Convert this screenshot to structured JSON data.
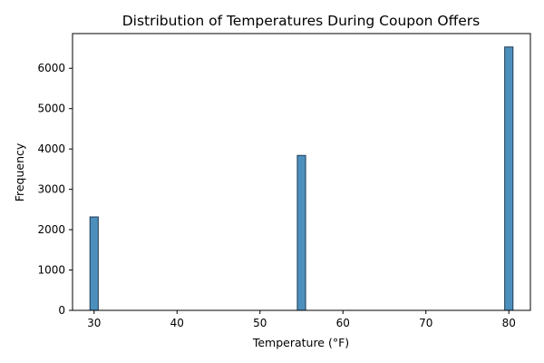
{
  "chart_data": {
    "type": "bar",
    "title": "Distribution of Temperatures During Coupon Offers",
    "xlabel": "Temperature (°F)",
    "ylabel": "Frequency",
    "xlim": [
      27.4,
      82.6
    ],
    "ylim": [
      0,
      6860
    ],
    "x_ticks": [
      30,
      40,
      50,
      60,
      70,
      80
    ],
    "y_ticks": [
      0,
      1000,
      2000,
      3000,
      4000,
      5000,
      6000
    ],
    "bin_width": 1,
    "bars": [
      {
        "x": 30,
        "value": 2316
      },
      {
        "x": 55,
        "value": 3840
      },
      {
        "x": 80,
        "value": 6528
      }
    ],
    "grid": false,
    "bar_color": "#4c8fbd",
    "edge_color": "#1f3b55"
  }
}
